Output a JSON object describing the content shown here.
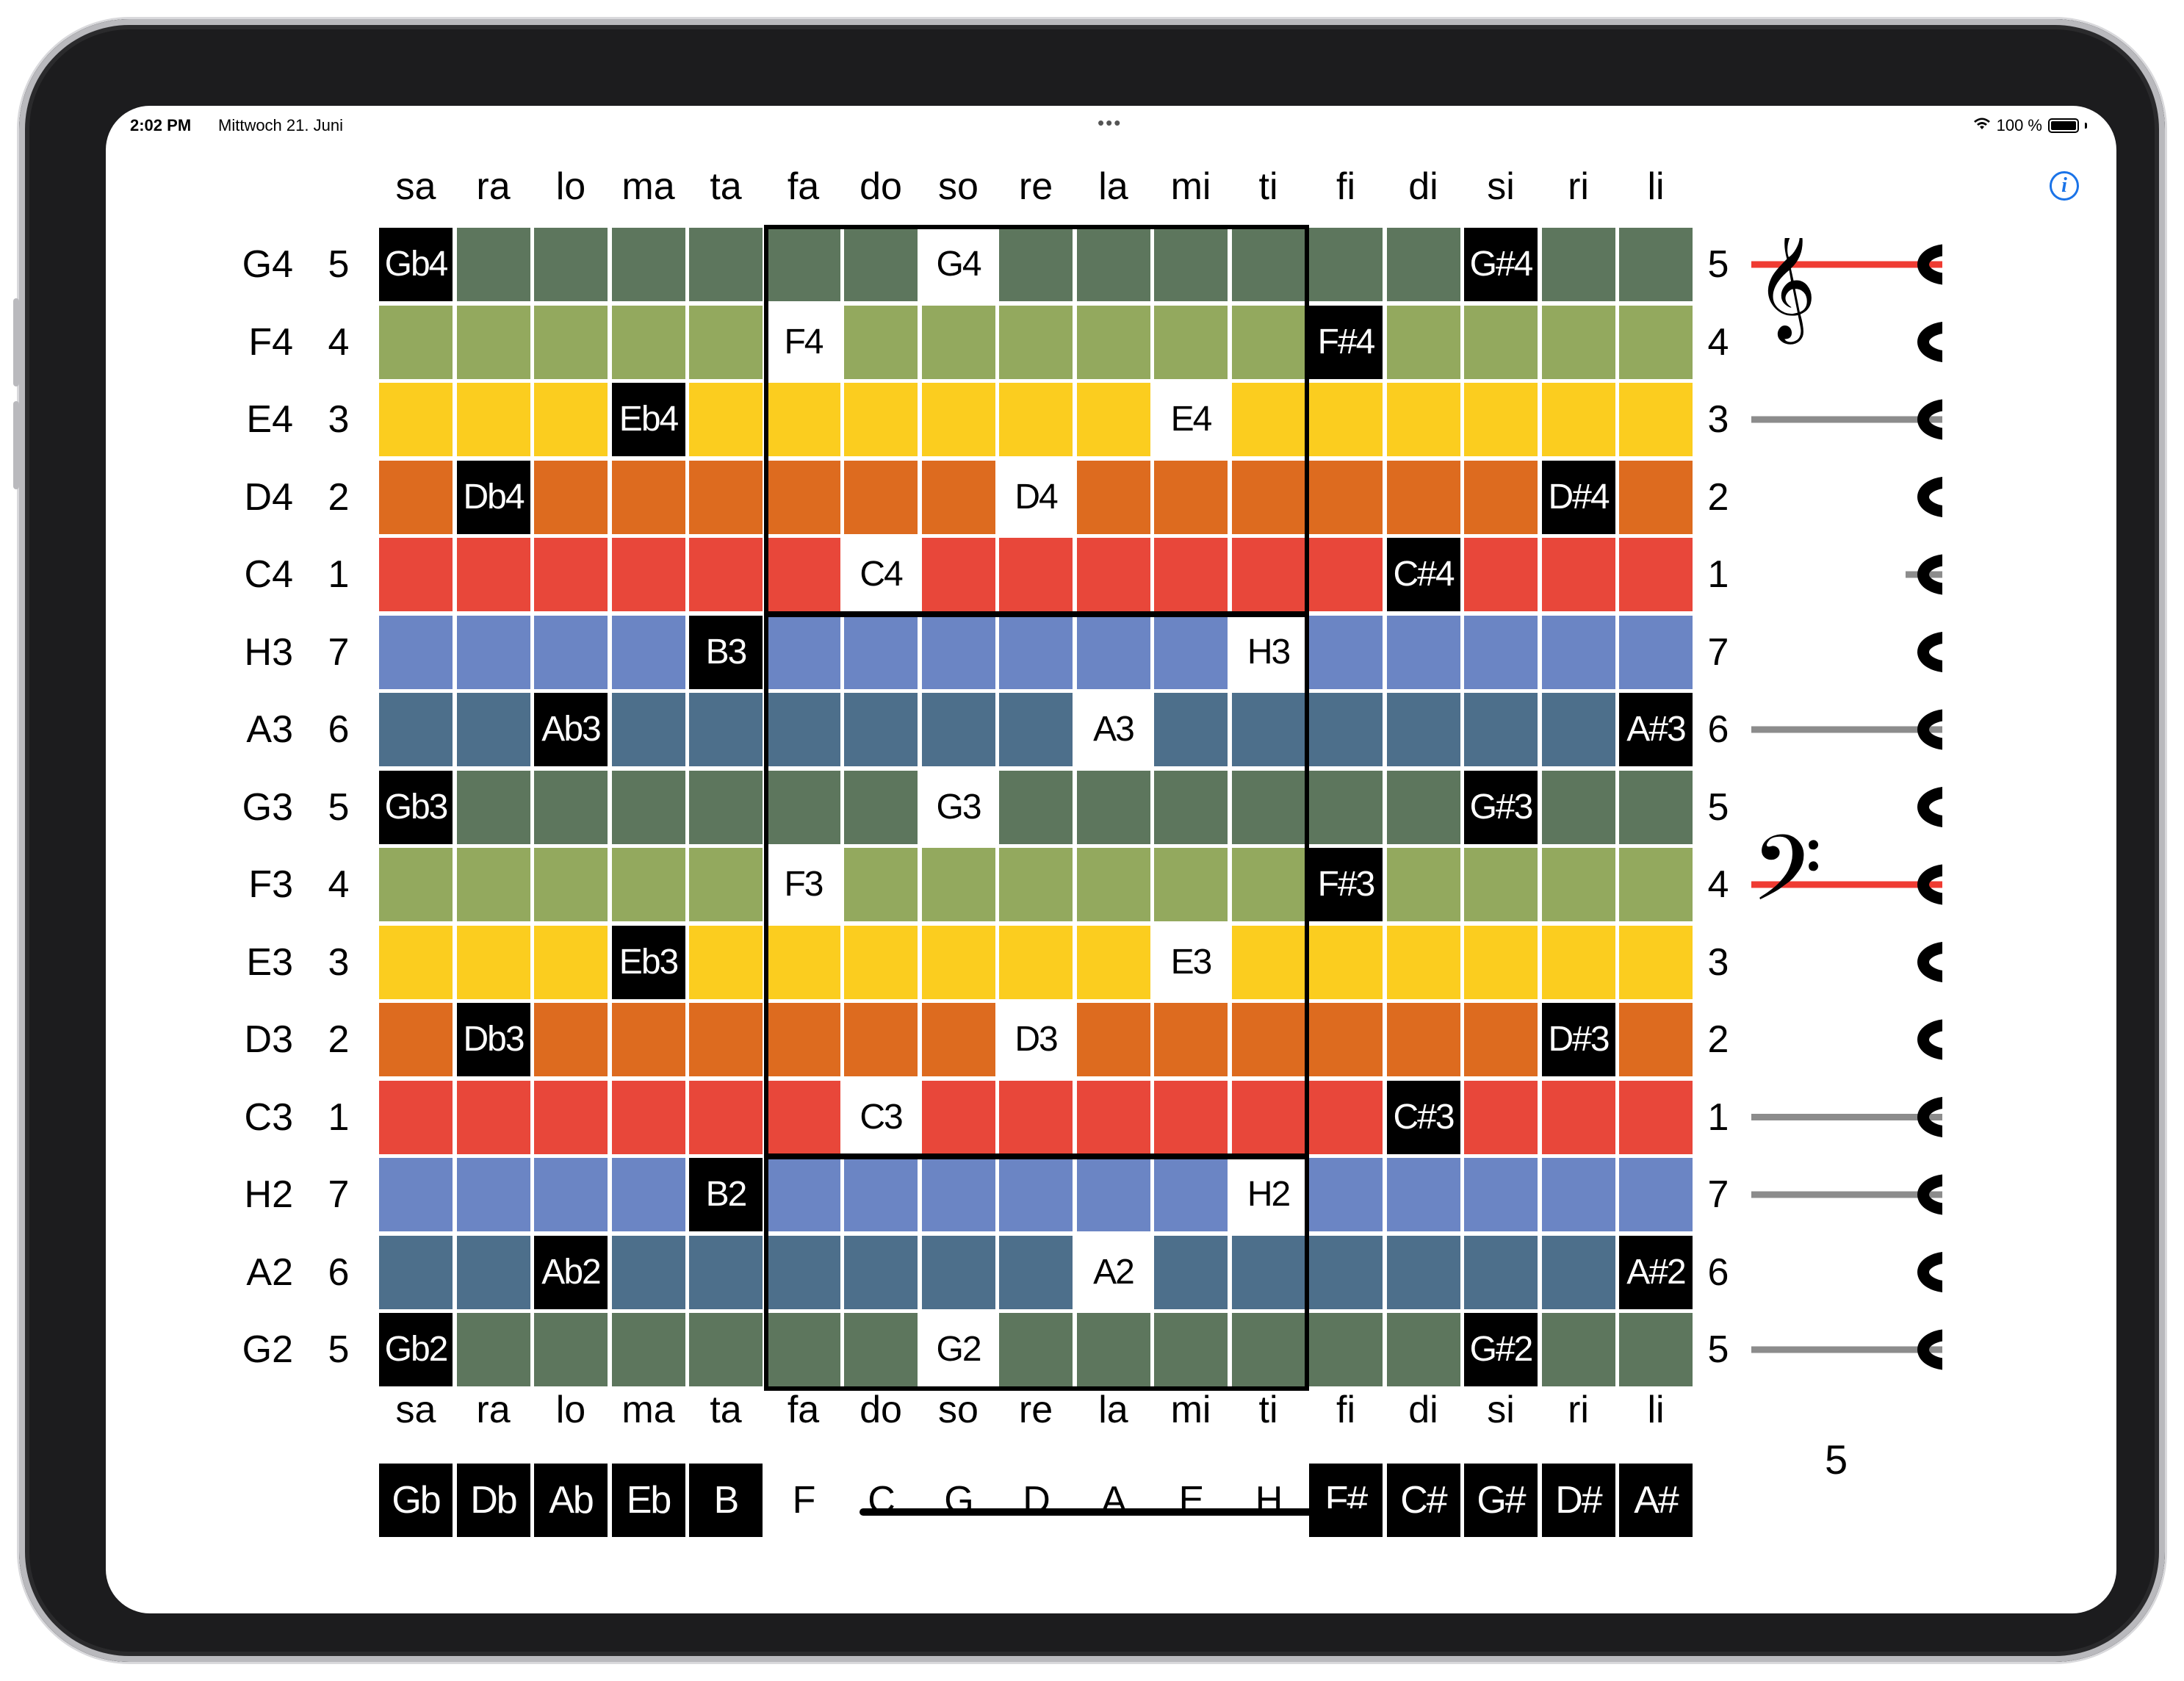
{
  "status_bar": {
    "time": "2:02 PM",
    "date": "Mittwoch 21. Juni",
    "battery": "100 %"
  },
  "columns": [
    "sa",
    "ra",
    "lo",
    "ma",
    "ta",
    "fa",
    "do",
    "so",
    "re",
    "la",
    "mi",
    "ti",
    "fi",
    "di",
    "si",
    "ri",
    "li"
  ],
  "rows": [
    {
      "note": "G4",
      "degree": "5",
      "color": "#5d765d",
      "label": {
        "col": 7,
        "text": "G4"
      },
      "left": "Gb4",
      "right": "G#4",
      "degree_color": "white"
    },
    {
      "note": "F4",
      "degree": "4",
      "color": "#93a95e",
      "label": {
        "col": 5,
        "text": "F4"
      },
      "right": "F#4"
    },
    {
      "note": "E4",
      "degree": "3",
      "color": "#fbcd1f",
      "label": {
        "col": 10,
        "text": "E4"
      },
      "left": "Eb4"
    },
    {
      "note": "D4",
      "degree": "2",
      "color": "#dd6b1f",
      "label": {
        "col": 8,
        "text": "D4"
      },
      "left": "Db4",
      "right": "D#4"
    },
    {
      "note": "C4",
      "degree": "1",
      "color": "#e8473a",
      "label": {
        "col": 6,
        "text": "C4"
      },
      "right": "C#4"
    },
    {
      "note": "H3",
      "degree": "7",
      "color": "#6b85c4",
      "label": {
        "col": 11,
        "text": "H3"
      },
      "left": "B3"
    },
    {
      "note": "A3",
      "degree": "6",
      "color": "#4d6f8b",
      "label": {
        "col": 9,
        "text": "A3"
      },
      "left": "Ab3",
      "right": "A#3"
    },
    {
      "note": "G3",
      "degree": "5",
      "color": "#5d765d",
      "label": {
        "col": 7,
        "text": "G3"
      },
      "left": "Gb3",
      "right": "G#3"
    },
    {
      "note": "F3",
      "degree": "4",
      "color": "#93a95e",
      "label": {
        "col": 5,
        "text": "F3"
      },
      "right": "F#3"
    },
    {
      "note": "E3",
      "degree": "3",
      "color": "#fbcd1f",
      "label": {
        "col": 10,
        "text": "E3"
      },
      "left": "Eb3"
    },
    {
      "note": "D3",
      "degree": "2",
      "color": "#dd6b1f",
      "label": {
        "col": 8,
        "text": "D3"
      },
      "left": "Db3",
      "right": "D#3"
    },
    {
      "note": "C3",
      "degree": "1",
      "color": "#e8473a",
      "label": {
        "col": 6,
        "text": "C3"
      },
      "right": "C#3"
    },
    {
      "note": "H2",
      "degree": "7",
      "color": "#6b85c4",
      "label": {
        "col": 11,
        "text": "H2"
      },
      "left": "B2"
    },
    {
      "note": "A2",
      "degree": "6",
      "color": "#4d6f8b",
      "label": {
        "col": 9,
        "text": "A2"
      },
      "left": "Ab2",
      "right": "A#2"
    },
    {
      "note": "G2",
      "degree": "5",
      "color": "#5d765d",
      "label": {
        "col": 7,
        "text": "G2"
      },
      "left": "Gb2",
      "right": "G#2"
    }
  ],
  "bottom_keys": [
    {
      "text": "Gb",
      "style": "black"
    },
    {
      "text": "Db",
      "style": "black"
    },
    {
      "text": "Ab",
      "style": "black"
    },
    {
      "text": "Eb",
      "style": "black"
    },
    {
      "text": "B",
      "style": "black"
    },
    {
      "text": "F",
      "style": "white"
    },
    {
      "text": "C",
      "style": "white"
    },
    {
      "text": "G",
      "style": "white"
    },
    {
      "text": "D",
      "style": "white"
    },
    {
      "text": "A",
      "style": "white"
    },
    {
      "text": "E",
      "style": "white"
    },
    {
      "text": "H",
      "style": "white"
    },
    {
      "text": "F#",
      "style": "black"
    },
    {
      "text": "C#",
      "style": "black"
    },
    {
      "text": "G#",
      "style": "black"
    },
    {
      "text": "D#",
      "style": "black"
    },
    {
      "text": "A#",
      "style": "black"
    }
  ],
  "staff": {
    "value": "5",
    "line_highlight_color": "#ef3b32",
    "line_color": "#8c8c8c"
  }
}
